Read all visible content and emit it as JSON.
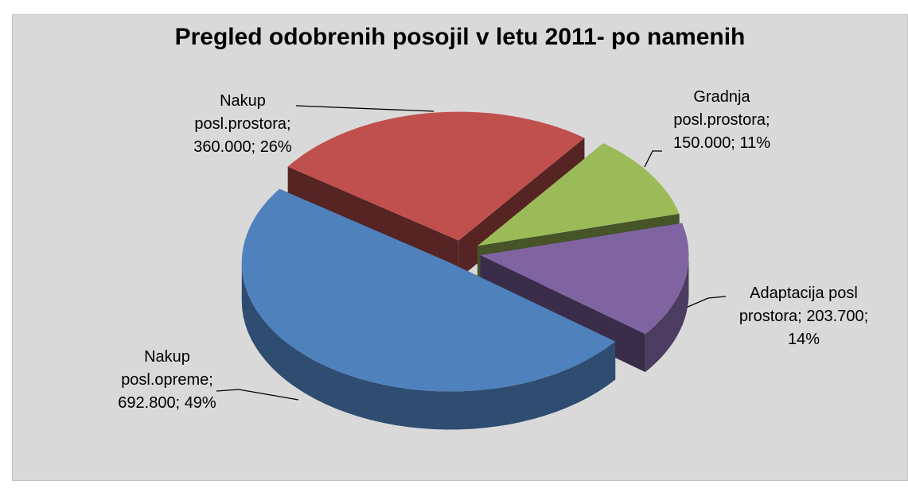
{
  "chart_data": {
    "type": "pie3d",
    "title": "Pregled odobrenih posojil v letu 2011- po namenih",
    "categories": [
      "Nakup posl.prostora;",
      "Gradnja posl.prostora;",
      "Adaptacija posl prostora;",
      "Nakup posl.opreme;"
    ],
    "values": [
      360000,
      150000,
      203700,
      692800
    ],
    "value_labels": [
      "360.000;",
      "150.000;",
      "203.700;",
      "692.800;"
    ],
    "percent_labels": [
      "26%",
      "11%",
      "14%",
      "49%"
    ],
    "colors": [
      "#c0504d",
      "#9bbb59",
      "#8064a2",
      "#4f81bd"
    ]
  }
}
